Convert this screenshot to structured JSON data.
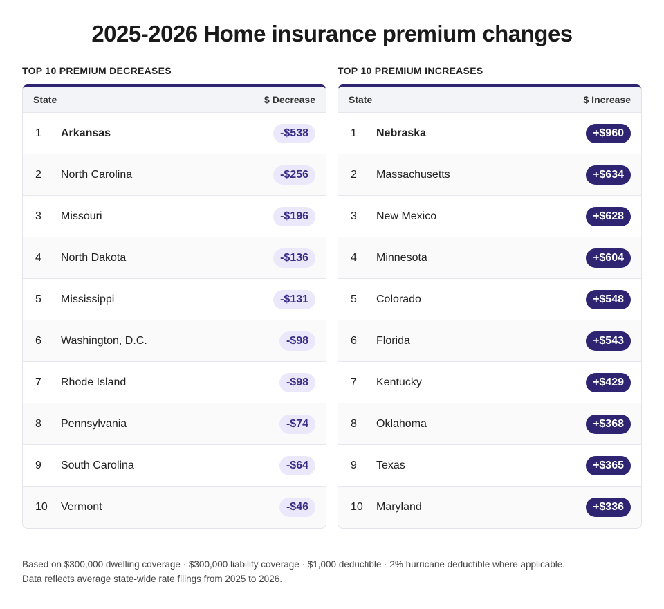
{
  "title": "2025-2026 Home insurance premium changes",
  "decreases": {
    "label": "TOP 10 PREMIUM DECREASES",
    "col_state": "State",
    "col_value": "$ Decrease",
    "rows": [
      {
        "rank": "1",
        "state": "Arkansas",
        "value": "-$538"
      },
      {
        "rank": "2",
        "state": "North Carolina",
        "value": "-$256"
      },
      {
        "rank": "3",
        "state": "Missouri",
        "value": "-$196"
      },
      {
        "rank": "4",
        "state": "North Dakota",
        "value": "-$136"
      },
      {
        "rank": "5",
        "state": "Mississippi",
        "value": "-$131"
      },
      {
        "rank": "6",
        "state": "Washington, D.C.",
        "value": "-$98"
      },
      {
        "rank": "7",
        "state": "Rhode Island",
        "value": "-$98"
      },
      {
        "rank": "8",
        "state": "Pennsylvania",
        "value": "-$74"
      },
      {
        "rank": "9",
        "state": "South Carolina",
        "value": "-$64"
      },
      {
        "rank": "10",
        "state": "Vermont",
        "value": "-$46"
      }
    ]
  },
  "increases": {
    "label": "TOP 10 PREMIUM INCREASES",
    "col_state": "State",
    "col_value": "$ Increase",
    "rows": [
      {
        "rank": "1",
        "state": "Nebraska",
        "value": "+$960"
      },
      {
        "rank": "2",
        "state": "Massachusetts",
        "value": "+$634"
      },
      {
        "rank": "3",
        "state": "New Mexico",
        "value": "+$628"
      },
      {
        "rank": "4",
        "state": "Minnesota",
        "value": "+$604"
      },
      {
        "rank": "5",
        "state": "Colorado",
        "value": "+$548"
      },
      {
        "rank": "6",
        "state": "Florida",
        "value": "+$543"
      },
      {
        "rank": "7",
        "state": "Kentucky",
        "value": "+$429"
      },
      {
        "rank": "8",
        "state": "Oklahoma",
        "value": "+$368"
      },
      {
        "rank": "9",
        "state": "Texas",
        "value": "+$365"
      },
      {
        "rank": "10",
        "state": "Maryland",
        "value": "+$336"
      }
    ]
  },
  "footnote": {
    "line1": "Based on $300,000 dwelling coverage · $300,000 liability coverage · $1,000 deductible · 2% hurricane deductible where applicable.",
    "line2": "Data reflects average state-wide rate filings from 2025 to 2026."
  },
  "colors": {
    "accent": "#2e2472",
    "decrease_pill_bg": "#ebe8fb",
    "decrease_pill_text": "#3a2d86",
    "increase_pill_text": "#ffffff"
  }
}
